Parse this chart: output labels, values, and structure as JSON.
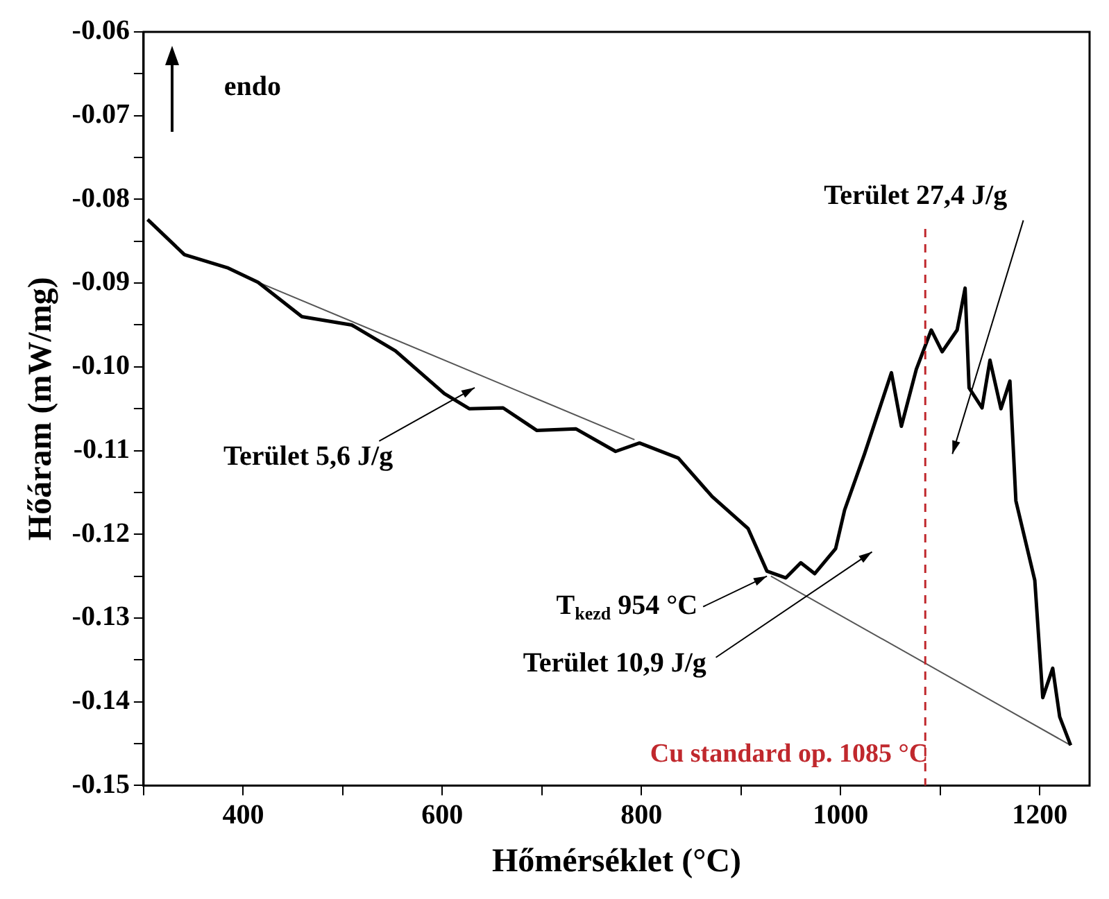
{
  "chart_data": {
    "type": "line",
    "xlabel": "Hőmérséklet (°C)",
    "ylabel": "Hőáram (mW/mg)",
    "xlim": [
      300,
      1250
    ],
    "ylim": [
      -0.15,
      -0.06
    ],
    "xticks": [
      {
        "value": 300,
        "label": null
      },
      400,
      {
        "value": 500,
        "label": null
      },
      600,
      {
        "value": 700,
        "label": null
      },
      800,
      {
        "value": 900,
        "label": null
      },
      1000,
      {
        "value": 1100,
        "label": null
      },
      1200
    ],
    "yticks": [
      -0.15,
      {
        "value": -0.145,
        "label": null
      },
      -0.14,
      {
        "value": -0.135,
        "label": null
      },
      -0.13,
      {
        "value": -0.125,
        "label": null
      },
      -0.12,
      {
        "value": -0.115,
        "label": null
      },
      -0.11,
      {
        "value": -0.105,
        "label": null
      },
      {
        "value": -0.1,
        "label": "-0.10"
      },
      {
        "value": -0.095,
        "label": null
      },
      -0.09,
      {
        "value": -0.085,
        "label": null
      },
      -0.08,
      {
        "value": -0.075,
        "label": null
      },
      -0.07,
      {
        "value": -0.065,
        "label": null
      },
      -0.06
    ],
    "series": [
      {
        "color": "#000000",
        "x": [
          304,
          341,
          385,
          415,
          459,
          509,
          553,
          602,
          627,
          661,
          695,
          734,
          774,
          798,
          837,
          871,
          907,
          926,
          945,
          960,
          974,
          995,
          1004,
          1024,
          1051,
          1061,
          1076,
          1091,
          1102,
          1117,
          1125,
          1129,
          1142,
          1150,
          1161,
          1170,
          1176,
          1195,
          1203,
          1213,
          1220,
          1231
        ],
        "values": [
          -0.0824,
          -0.0866,
          -0.0882,
          -0.0899,
          -0.094,
          -0.095,
          -0.0981,
          -0.1032,
          -0.105,
          -0.1049,
          -0.1076,
          -0.1074,
          -0.1101,
          -0.1091,
          -0.1109,
          -0.1155,
          -0.1193,
          -0.1244,
          -0.1252,
          -0.1234,
          -0.1247,
          -0.1217,
          -0.1171,
          -0.1104,
          -0.1007,
          -0.1071,
          -0.1003,
          -0.0956,
          -0.0982,
          -0.0956,
          -0.0906,
          -0.1025,
          -0.1049,
          -0.0992,
          -0.105,
          -0.1017,
          -0.116,
          -0.1255,
          -0.1395,
          -0.136,
          -0.1418,
          -0.1452
        ]
      },
      {
        "color": "#555555",
        "x": [
          415,
          793
        ],
        "values": [
          -0.0899,
          -0.1087
        ]
      },
      {
        "color": "#555555",
        "x": [
          930,
          1231
        ],
        "values": [
          -0.125,
          -0.1452
        ]
      }
    ],
    "ref_lines": [
      {
        "axis": "x",
        "value": 1085,
        "label": "Cu standard op. 1085 °C",
        "color": "#c0282d",
        "line_style": "dashed"
      }
    ],
    "annotations": [
      "Terület 5,6 J/g",
      {
        "text": "T$_{kezd}$ 954 °C",
        "x": 926,
        "y": -0.125
      },
      "Terület 10,9 J/g",
      "Terület 27,4 J/g",
      "endo"
    ],
    "legend": false
  }
}
